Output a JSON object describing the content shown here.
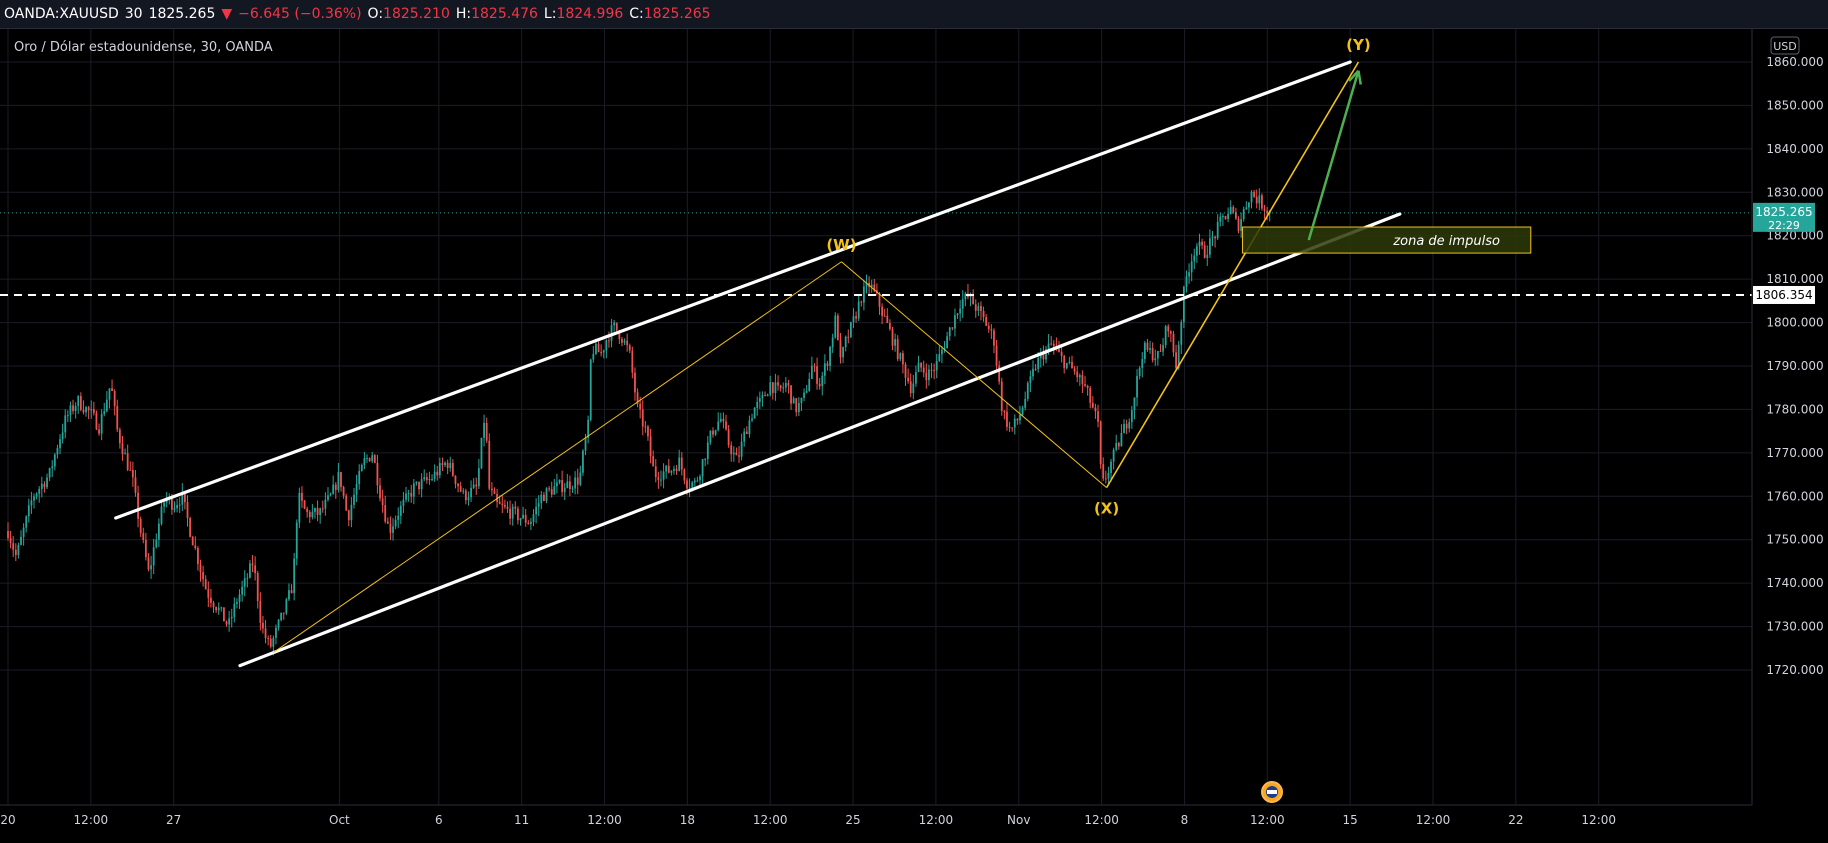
{
  "header": {
    "symbol": "OANDA:XAUUSD",
    "interval": "30",
    "last": "1825.265",
    "change": "−6.645 (−0.36%)",
    "o_label": "O:",
    "o_value": "1825.210",
    "h_label": "H:",
    "h_value": "1825.476",
    "l_label": "L:",
    "l_value": "1824.996",
    "c_label": "C:",
    "c_value": "1825.265"
  },
  "legend": {
    "title": "Oro / Dólar estadounidense, 30, OANDA"
  },
  "currency_button": "USD",
  "colors": {
    "up": "#26a69a",
    "down": "#ef5350",
    "channel": "#ffffff",
    "wave": "#f2c11a",
    "arrow": "#4caf50",
    "zone_fill": "#2e3a08",
    "zone_border": "#f2c11a",
    "price_badge": "#26a69a"
  },
  "chart_data": {
    "type": "candlestick",
    "y_ticks": [
      "1860.000",
      "1850.000",
      "1840.000",
      "1830.000",
      "1820.000",
      "1810.000",
      "1800.000",
      "1790.000",
      "1780.000",
      "1770.000",
      "1760.000",
      "1750.000",
      "1740.000",
      "1730.000",
      "1720.000"
    ],
    "y_range": [
      1716,
      1866
    ],
    "x_labels": [
      {
        "t": 0,
        "label": "20"
      },
      {
        "t": 0.5,
        "label": "12:00"
      },
      {
        "t": 1,
        "label": "27"
      },
      {
        "t": 2,
        "label": "Oct"
      },
      {
        "t": 2.6,
        "label": "6"
      },
      {
        "t": 3.1,
        "label": "11"
      },
      {
        "t": 3.6,
        "label": "12:00"
      },
      {
        "t": 4.1,
        "label": "18"
      },
      {
        "t": 4.6,
        "label": "12:00"
      },
      {
        "t": 5.1,
        "label": "25"
      },
      {
        "t": 5.6,
        "label": "12:00"
      },
      {
        "t": 6.1,
        "label": "Nov"
      },
      {
        "t": 6.6,
        "label": "12:00"
      },
      {
        "t": 7.1,
        "label": "8"
      },
      {
        "t": 7.6,
        "label": "12:00"
      },
      {
        "t": 8.1,
        "label": "15"
      },
      {
        "t": 8.6,
        "label": "12:00"
      },
      {
        "t": 9.1,
        "label": "22"
      },
      {
        "t": 9.6,
        "label": "12:00"
      }
    ],
    "x_range": [
      0,
      10.5
    ],
    "price_path": [
      [
        0,
        1752
      ],
      [
        0.05,
        1746
      ],
      [
        0.15,
        1760
      ],
      [
        0.25,
        1765
      ],
      [
        0.3,
        1772
      ],
      [
        0.35,
        1778
      ],
      [
        0.42,
        1782
      ],
      [
        0.5,
        1779
      ],
      [
        0.55,
        1776
      ],
      [
        0.62,
        1786
      ],
      [
        0.66,
        1775
      ],
      [
        0.7,
        1770
      ],
      [
        0.75,
        1764
      ],
      [
        0.8,
        1752
      ],
      [
        0.85,
        1742
      ],
      [
        0.9,
        1752
      ],
      [
        0.95,
        1760
      ],
      [
        1.0,
        1758
      ],
      [
        1.05,
        1760
      ],
      [
        1.1,
        1752
      ],
      [
        1.15,
        1745
      ],
      [
        1.2,
        1738
      ],
      [
        1.27,
        1734
      ],
      [
        1.33,
        1730
      ],
      [
        1.38,
        1736
      ],
      [
        1.43,
        1740
      ],
      [
        1.48,
        1745
      ],
      [
        1.53,
        1730
      ],
      [
        1.58,
        1725
      ],
      [
        1.63,
        1730
      ],
      [
        1.68,
        1735
      ],
      [
        1.72,
        1740
      ],
      [
        1.75,
        1760
      ],
      [
        1.8,
        1756
      ],
      [
        1.88,
        1756
      ],
      [
        1.95,
        1760
      ],
      [
        2.0,
        1765
      ],
      [
        2.05,
        1755
      ],
      [
        2.1,
        1762
      ],
      [
        2.15,
        1768
      ],
      [
        2.2,
        1770
      ],
      [
        2.25,
        1760
      ],
      [
        2.3,
        1752
      ],
      [
        2.35,
        1756
      ],
      [
        2.45,
        1762
      ],
      [
        2.55,
        1764
      ],
      [
        2.65,
        1768
      ],
      [
        2.75,
        1760
      ],
      [
        2.83,
        1762
      ],
      [
        2.88,
        1780
      ],
      [
        2.9,
        1762
      ],
      [
        2.95,
        1758
      ],
      [
        3.05,
        1756
      ],
      [
        3.15,
        1754
      ],
      [
        3.22,
        1760
      ],
      [
        3.3,
        1762
      ],
      [
        3.4,
        1763
      ],
      [
        3.45,
        1764
      ],
      [
        3.48,
        1772
      ],
      [
        3.5,
        1775
      ],
      [
        3.52,
        1794
      ],
      [
        3.58,
        1793
      ],
      [
        3.62,
        1797
      ],
      [
        3.66,
        1799
      ],
      [
        3.7,
        1797
      ],
      [
        3.75,
        1793
      ],
      [
        3.8,
        1780
      ],
      [
        3.85,
        1775
      ],
      [
        3.9,
        1765
      ],
      [
        4.0,
        1766
      ],
      [
        4.05,
        1768
      ],
      [
        4.1,
        1763
      ],
      [
        4.15,
        1763
      ],
      [
        4.25,
        1775
      ],
      [
        4.3,
        1778
      ],
      [
        4.35,
        1772
      ],
      [
        4.4,
        1768
      ],
      [
        4.45,
        1775
      ],
      [
        4.5,
        1780
      ],
      [
        4.55,
        1782
      ],
      [
        4.6,
        1786
      ],
      [
        4.65,
        1784
      ],
      [
        4.7,
        1786
      ],
      [
        4.75,
        1780
      ],
      [
        4.8,
        1782
      ],
      [
        4.85,
        1790
      ],
      [
        4.9,
        1786
      ],
      [
        4.95,
        1792
      ],
      [
        5.0,
        1802
      ],
      [
        5.02,
        1790
      ],
      [
        5.05,
        1795
      ],
      [
        5.1,
        1800
      ],
      [
        5.15,
        1806
      ],
      [
        5.2,
        1809
      ],
      [
        5.25,
        1805
      ],
      [
        5.3,
        1800
      ],
      [
        5.35,
        1795
      ],
      [
        5.4,
        1790
      ],
      [
        5.45,
        1785
      ],
      [
        5.5,
        1790
      ],
      [
        5.55,
        1788
      ],
      [
        5.6,
        1790
      ],
      [
        5.65,
        1795
      ],
      [
        5.7,
        1800
      ],
      [
        5.75,
        1805
      ],
      [
        5.8,
        1806
      ],
      [
        5.85,
        1803
      ],
      [
        5.9,
        1800
      ],
      [
        5.95,
        1796
      ],
      [
        6.0,
        1780
      ],
      [
        6.05,
        1775
      ],
      [
        6.1,
        1778
      ],
      [
        6.15,
        1784
      ],
      [
        6.2,
        1790
      ],
      [
        6.25,
        1793
      ],
      [
        6.3,
        1795
      ],
      [
        6.35,
        1792
      ],
      [
        6.4,
        1790
      ],
      [
        6.45,
        1788
      ],
      [
        6.5,
        1785
      ],
      [
        6.55,
        1780
      ],
      [
        6.58,
        1776
      ],
      [
        6.6,
        1762
      ],
      [
        6.63,
        1765
      ],
      [
        6.68,
        1770
      ],
      [
        6.72,
        1774
      ],
      [
        6.78,
        1780
      ],
      [
        6.85,
        1794
      ],
      [
        6.9,
        1793
      ],
      [
        6.95,
        1792
      ],
      [
        7.0,
        1800
      ],
      [
        7.05,
        1790
      ],
      [
        7.1,
        1808
      ],
      [
        7.12,
        1812
      ],
      [
        7.17,
        1818
      ],
      [
        7.22,
        1816
      ],
      [
        7.28,
        1820
      ],
      [
        7.33,
        1824
      ],
      [
        7.38,
        1826
      ],
      [
        7.42,
        1822
      ],
      [
        7.47,
        1827
      ],
      [
        7.5,
        1830
      ],
      [
        7.55,
        1828
      ],
      [
        7.6,
        1826
      ],
      [
        7.63,
        1825
      ]
    ],
    "channel_upper": [
      [
        0.65,
        1755
      ],
      [
        8.1,
        1860
      ]
    ],
    "channel_lower": [
      [
        1.4,
        1721
      ],
      [
        8.4,
        1825
      ]
    ],
    "channel_dash_points": [
      1.85,
      3.2,
      4.4,
      5.3,
      6.15,
      7.0,
      7.9
    ],
    "horizontal_level": 1806.354,
    "horizontal_level_label": "1806.354",
    "wave_path": [
      [
        1.6,
        1724
      ],
      [
        5.03,
        1814
      ],
      [
        6.63,
        1762
      ],
      [
        8.15,
        1860
      ]
    ],
    "wave_labels": [
      {
        "t": 5.03,
        "y": 1814,
        "label": "(W)",
        "pos": "above"
      },
      {
        "t": 6.63,
        "y": 1762,
        "label": "(X)",
        "pos": "below"
      },
      {
        "t": 8.15,
        "y": 1860,
        "label": "(Y)",
        "pos": "above"
      }
    ],
    "arrow": {
      "from": [
        7.85,
        1819
      ],
      "to": [
        8.15,
        1858
      ]
    },
    "zone": {
      "t0": 7.45,
      "t1": 9.19,
      "y_top": 1822,
      "y_bottom": 1816,
      "label": "zona de impulso"
    },
    "current_price": 1825.265,
    "current_price_label": "1825.265",
    "countdown": "22:29"
  }
}
